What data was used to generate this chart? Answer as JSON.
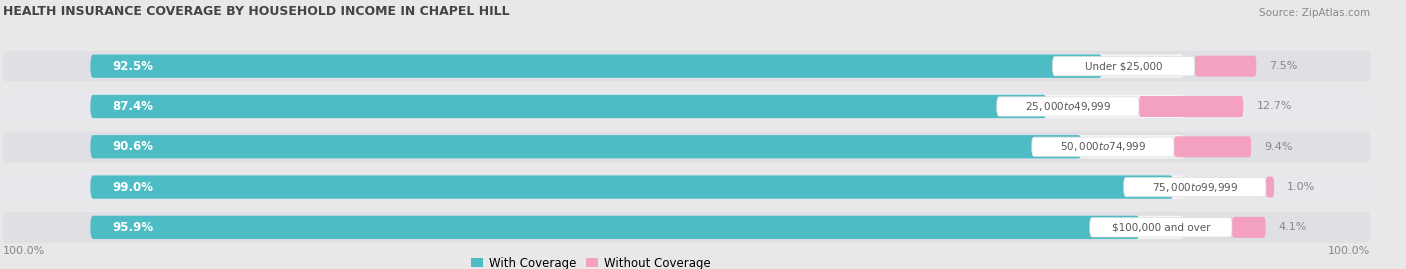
{
  "title": "HEALTH INSURANCE COVERAGE BY HOUSEHOLD INCOME IN CHAPEL HILL",
  "source": "Source: ZipAtlas.com",
  "categories": [
    "Under $25,000",
    "$25,000 to $49,999",
    "$50,000 to $74,999",
    "$75,000 to $99,999",
    "$100,000 and over"
  ],
  "with_coverage": [
    92.5,
    87.4,
    90.6,
    99.0,
    95.9
  ],
  "without_coverage": [
    7.5,
    12.7,
    9.4,
    1.0,
    4.1
  ],
  "color_coverage": "#4DBCC4",
  "color_no_coverage": "#F07098",
  "color_no_coverage_light": "#F4A0C0",
  "background_color": "#e8e8e8",
  "bar_bg_color": "#d4d4d8",
  "bar_inner_color": "#f5f5f5",
  "legend_coverage": "With Coverage",
  "legend_no_coverage": "Without Coverage",
  "x_axis_left_label": "100.0%",
  "x_axis_right_label": "100.0%",
  "title_color": "#444444",
  "source_color": "#888888",
  "label_color": "#555555",
  "pct_right_color": "#888888"
}
